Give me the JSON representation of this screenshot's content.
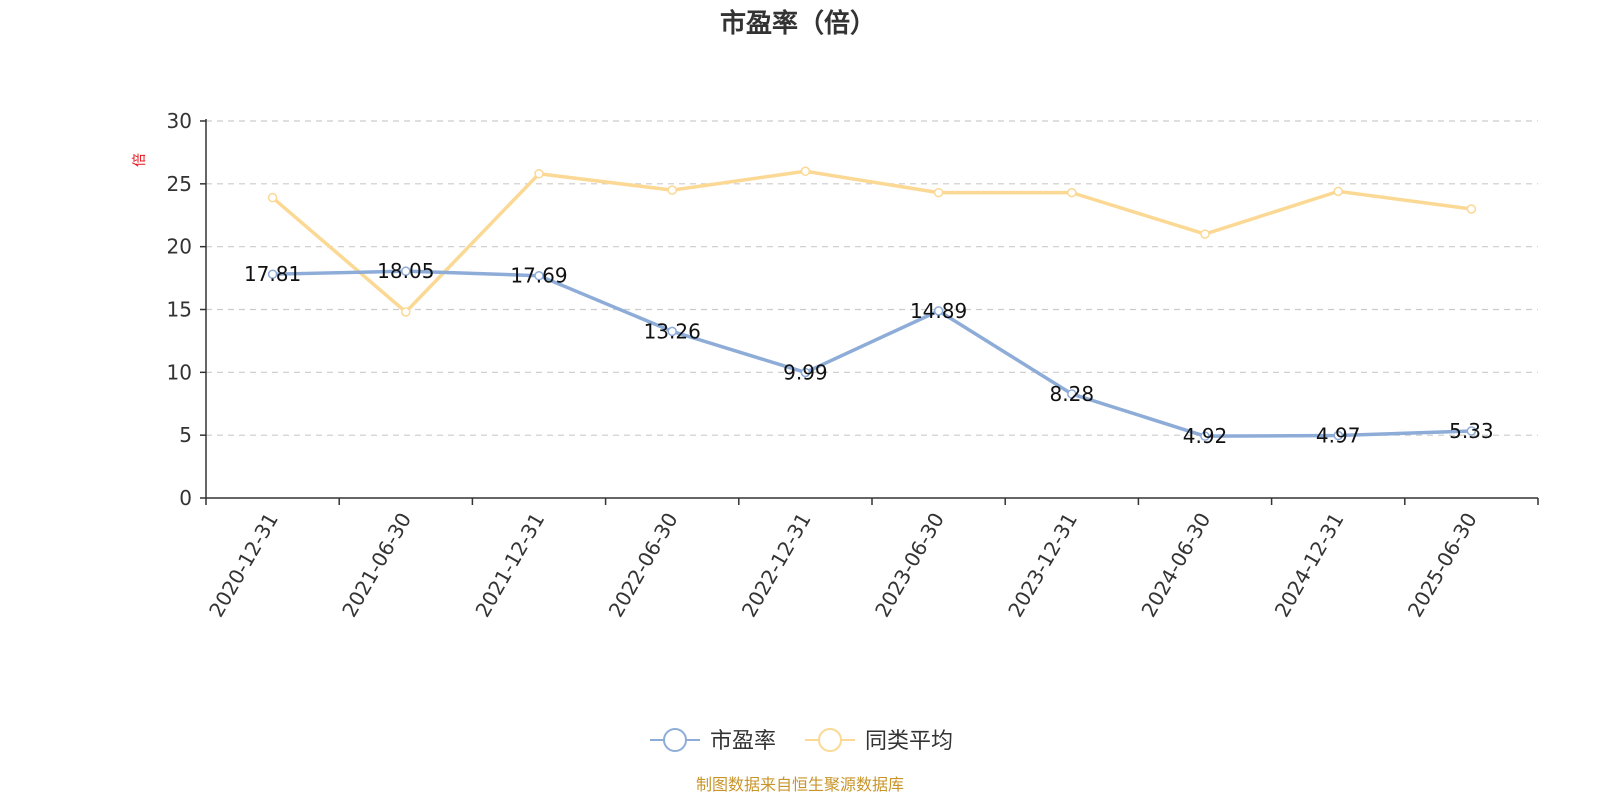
{
  "chart_data": {
    "type": "line",
    "title": "市盈率（倍）",
    "ylabel": "倍",
    "xlabel": "",
    "ylim": [
      0,
      30
    ],
    "yticks": [
      0,
      5,
      10,
      15,
      20,
      25,
      30
    ],
    "grid": true,
    "legend_position": "bottom",
    "categories": [
      "2020-12-31",
      "2021-06-30",
      "2021-12-31",
      "2022-06-30",
      "2022-12-31",
      "2023-06-30",
      "2023-12-31",
      "2024-06-30",
      "2024-12-31",
      "2025-06-30"
    ],
    "series": [
      {
        "name": "市盈率",
        "color": "#8eacd8",
        "values": [
          17.81,
          18.05,
          17.69,
          13.26,
          9.99,
          14.89,
          8.28,
          4.92,
          4.97,
          5.33
        ],
        "data_labels": [
          "17.81",
          "18.05",
          "17.69",
          "13.26",
          "9.99",
          "14.89",
          "8.28",
          "4.92",
          "4.97",
          "5.33"
        ]
      },
      {
        "name": "同类平均",
        "color": "#fbd994",
        "values": [
          23.9,
          14.8,
          25.8,
          24.5,
          26.0,
          24.3,
          24.3,
          21.0,
          24.4,
          23.0
        ]
      }
    ],
    "source": "制图数据来自恒生聚源数据库"
  }
}
